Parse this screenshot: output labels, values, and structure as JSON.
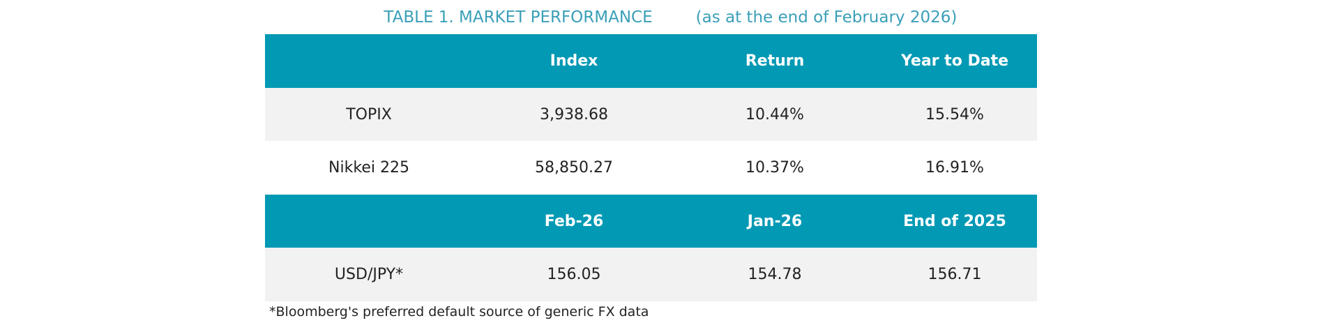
{
  "title": "TABLE 1. MARKET PERFORMANCE",
  "subtitle": "(as at the end of February 2026)",
  "table": {
    "sections": [
      {
        "header": [
          "Index",
          "Return",
          "Year to Date"
        ],
        "rows": [
          [
            "TOPIX",
            "3,938.68",
            "10.44%",
            "15.54%"
          ],
          [
            "Nikkei 225",
            "58,850.27",
            "10.37%",
            "16.91%"
          ]
        ]
      },
      {
        "header": [
          "Feb-26",
          "Jan-26",
          "End of 2025"
        ],
        "rows": [
          [
            "USD/JPY*",
            "156.05",
            "154.78",
            "156.71"
          ]
        ]
      }
    ]
  },
  "footnote": "*Bloomberg's preferred default source of generic FX data"
}
